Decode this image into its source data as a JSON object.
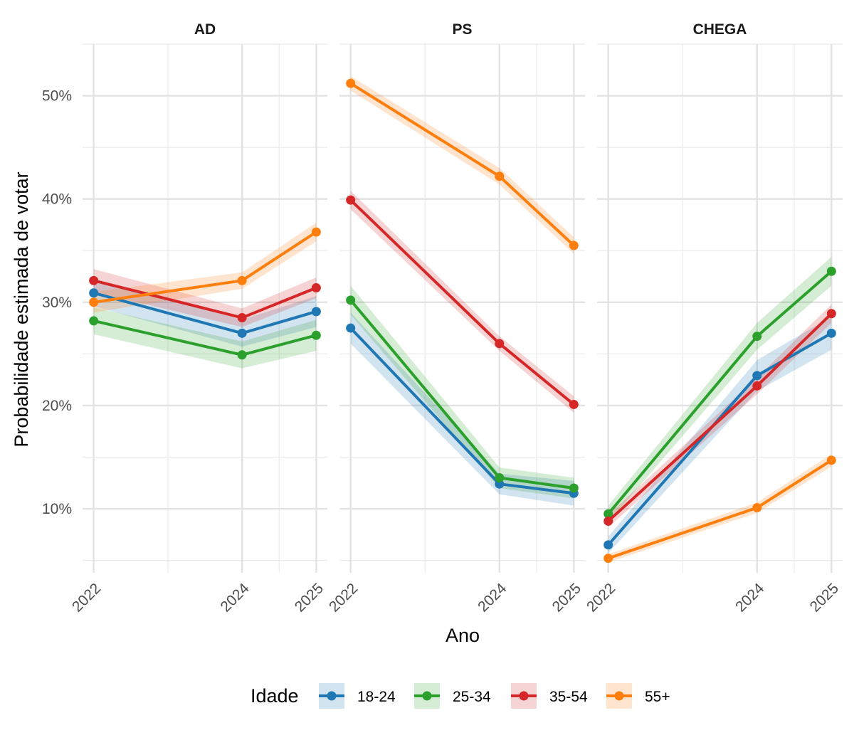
{
  "chart_data": {
    "type": "line",
    "facets": [
      "AD",
      "PS",
      "CHEGA"
    ],
    "x": [
      2022,
      2024,
      2025
    ],
    "x_tick_labels": [
      "2022",
      "2024",
      "2025"
    ],
    "xlabel": "Ano",
    "ylabel": "Probabilidade estimada de votar",
    "y_ticks": [
      10,
      20,
      30,
      40,
      50
    ],
    "y_tick_labels": [
      "10%",
      "20%",
      "30%",
      "40%",
      "50%"
    ],
    "ylim": [
      3.8,
      55
    ],
    "xlim": [
      2021.85,
      2025.15
    ],
    "grid": true,
    "confidence_band": true,
    "legend": {
      "title": "Idade",
      "position": "bottom",
      "entries": [
        "18-24",
        "25-34",
        "35-54",
        "55+"
      ]
    },
    "series_colors": {
      "18-24": "#1f77b4",
      "25-34": "#2ca02c",
      "35-54": "#d62728",
      "55+": "#ff7f0e"
    },
    "panels": [
      {
        "name": "AD",
        "series": [
          {
            "name": "18-24",
            "values": [
              30.9,
              27.0,
              29.1
            ],
            "lower": [
              29.6,
              25.7,
              27.6
            ],
            "upper": [
              32.2,
              28.3,
              30.6
            ]
          },
          {
            "name": "25-34",
            "values": [
              28.2,
              24.9,
              26.8
            ],
            "lower": [
              26.9,
              23.6,
              25.3
            ],
            "upper": [
              29.5,
              26.2,
              28.3
            ]
          },
          {
            "name": "35-54",
            "values": [
              32.1,
              28.5,
              31.4
            ],
            "lower": [
              31.0,
              27.6,
              30.4
            ],
            "upper": [
              33.2,
              29.4,
              32.4
            ]
          },
          {
            "name": "55+",
            "values": [
              30.0,
              32.1,
              36.8
            ],
            "lower": [
              29.0,
              31.3,
              35.9
            ],
            "upper": [
              31.0,
              32.9,
              37.7
            ]
          }
        ]
      },
      {
        "name": "PS",
        "series": [
          {
            "name": "18-24",
            "values": [
              27.5,
              12.4,
              11.5
            ],
            "lower": [
              26.0,
              11.4,
              10.3
            ],
            "upper": [
              29.0,
              13.4,
              12.7
            ]
          },
          {
            "name": "25-34",
            "values": [
              30.2,
              13.0,
              12.0
            ],
            "lower": [
              28.8,
              12.0,
              11.0
            ],
            "upper": [
              31.6,
              14.0,
              13.0
            ]
          },
          {
            "name": "35-54",
            "values": [
              39.9,
              26.0,
              20.1
            ],
            "lower": [
              39.0,
              25.3,
              19.3
            ],
            "upper": [
              40.8,
              26.7,
              20.9
            ]
          },
          {
            "name": "55+",
            "values": [
              51.2,
              42.2,
              35.5
            ],
            "lower": [
              50.5,
              41.4,
              34.7
            ],
            "upper": [
              51.9,
              43.0,
              36.3
            ]
          }
        ]
      },
      {
        "name": "CHEGA",
        "series": [
          {
            "name": "18-24",
            "values": [
              6.5,
              22.9,
              27.0
            ],
            "lower": [
              5.7,
              21.4,
              25.4
            ],
            "upper": [
              7.3,
              24.4,
              28.6
            ]
          },
          {
            "name": "25-34",
            "values": [
              9.5,
              26.7,
              33.0
            ],
            "lower": [
              8.7,
              25.4,
              31.6
            ],
            "upper": [
              10.3,
              28.0,
              34.4
            ]
          },
          {
            "name": "35-54",
            "values": [
              8.8,
              21.9,
              28.9
            ],
            "lower": [
              8.2,
              21.1,
              28.0
            ],
            "upper": [
              9.4,
              22.7,
              29.8
            ]
          },
          {
            "name": "55+",
            "values": [
              5.2,
              10.1,
              14.7
            ],
            "lower": [
              4.8,
              9.6,
              14.1
            ],
            "upper": [
              5.6,
              10.6,
              15.3
            ]
          }
        ]
      }
    ]
  }
}
